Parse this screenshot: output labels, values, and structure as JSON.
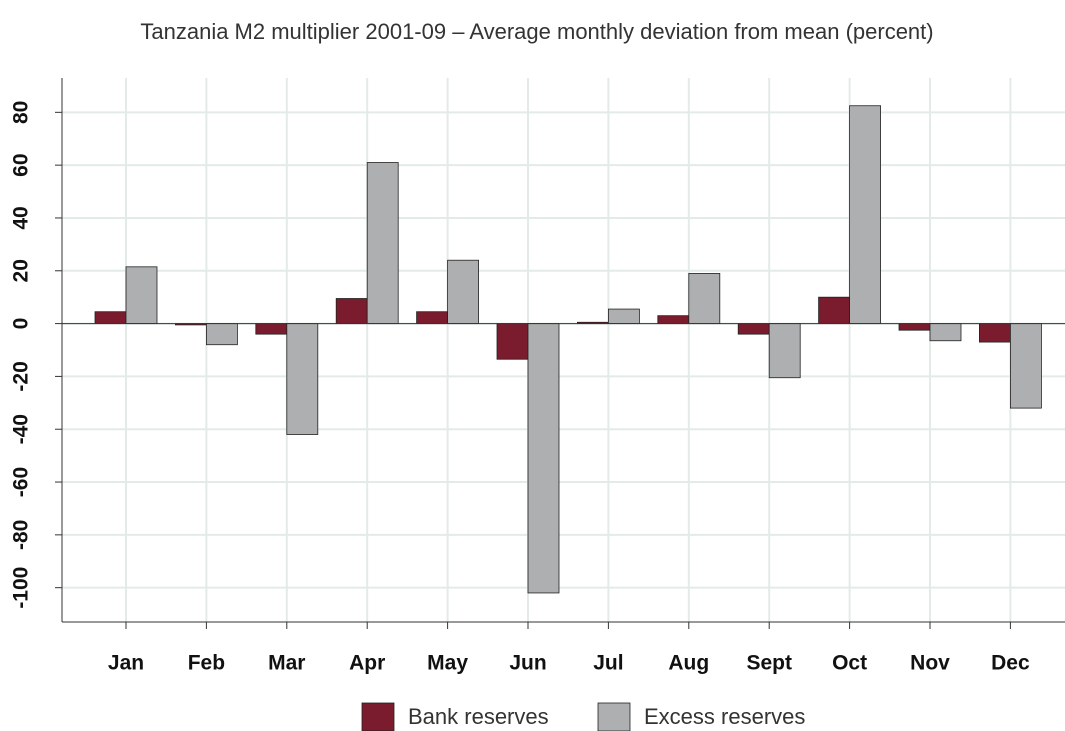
{
  "chart_data": {
    "type": "bar",
    "title": "Tanzania M2 multiplier 2001-09 – Average monthly deviation from mean (percent)",
    "categories": [
      "Jan",
      "Feb",
      "Mar",
      "Apr",
      "May",
      "Jun",
      "Jul",
      "Aug",
      "Sept",
      "Oct",
      "Nov",
      "Dec"
    ],
    "series": [
      {
        "name": "Bank reserves",
        "color": "#7b1c2e",
        "values": [
          4.5,
          -0.5,
          -4,
          9.5,
          4.5,
          -13.5,
          0.5,
          3,
          -4,
          10,
          -2.5,
          -7
        ]
      },
      {
        "name": "Excess reserves",
        "color": "#aeafb1",
        "values": [
          21.5,
          -8,
          -42,
          61,
          24,
          -102,
          5.5,
          19,
          -20.5,
          82.5,
          -6.5,
          -32
        ]
      }
    ],
    "ylim": [
      -113,
      93
    ],
    "yticks": [
      -100,
      -80,
      -60,
      -40,
      -20,
      0,
      20,
      40,
      60,
      80
    ],
    "grid": true,
    "legend": "bottom"
  }
}
